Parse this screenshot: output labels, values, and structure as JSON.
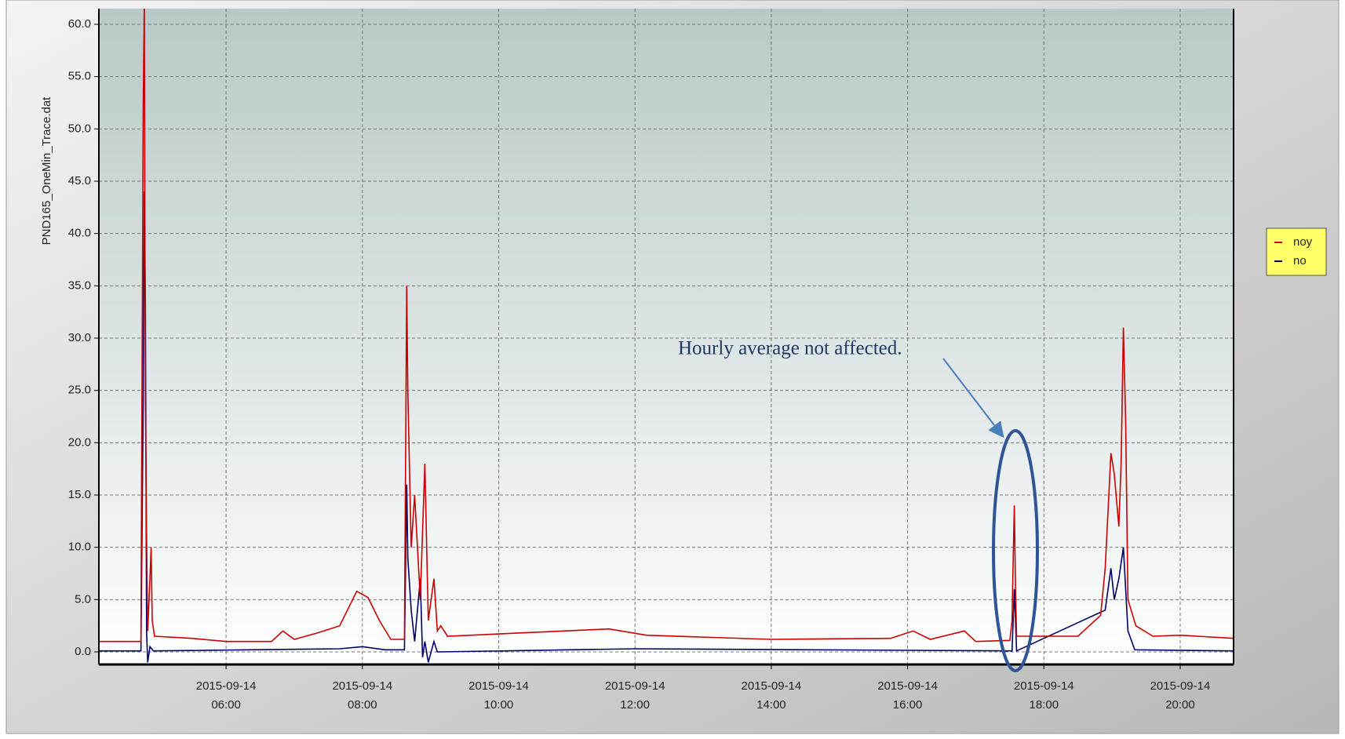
{
  "chart_data": {
    "type": "line",
    "ylabel": "PND165_OneMin_Trace.dat",
    "annotation": "Hourly average not affected.",
    "legend": "right",
    "grid": true,
    "xlim": [
      "2015-09-14 04:08",
      "2015-09-14 20:47"
    ],
    "xticks": [
      "2015-09-14 06:00",
      "2015-09-14 08:00",
      "2015-09-14 10:00",
      "2015-09-14 12:00",
      "2015-09-14 14:00",
      "2015-09-14 16:00",
      "2015-09-14 18:00",
      "2015-09-14 20:00"
    ],
    "ylim": [
      -1.2,
      61.5
    ],
    "yticks": [
      {
        "value": 0,
        "label": "0.0"
      },
      {
        "value": 5,
        "label": "5.0"
      },
      {
        "value": 10,
        "label": "10.0"
      },
      {
        "value": 15,
        "label": "15.0"
      },
      {
        "value": 20,
        "label": "20.0"
      },
      {
        "value": 25,
        "label": "25.0"
      },
      {
        "value": 30,
        "label": "30.0"
      },
      {
        "value": 35,
        "label": "35.0"
      },
      {
        "value": 40,
        "label": "40.0"
      },
      {
        "value": 45,
        "label": "45.0"
      },
      {
        "value": 50,
        "label": "50.0"
      },
      {
        "value": 55,
        "label": "55.0"
      },
      {
        "value": 60,
        "label": "60.0"
      }
    ],
    "series": [
      {
        "name": "noy",
        "color": "#cc0000",
        "x": [
          "2015-09-14 04:08",
          "2015-09-14 04:45",
          "2015-09-14 04:47",
          "2015-09-14 04:48",
          "2015-09-14 04:49",
          "2015-09-14 04:50",
          "2015-09-14 04:51",
          "2015-09-14 04:53",
          "2015-09-14 04:54",
          "2015-09-14 04:55",
          "2015-09-14 04:57",
          "2015-09-14 05:30",
          "2015-09-14 06:00",
          "2015-09-14 06:40",
          "2015-09-14 06:50",
          "2015-09-14 07:00",
          "2015-09-14 07:20",
          "2015-09-14 07:40",
          "2015-09-14 07:55",
          "2015-09-14 08:05",
          "2015-09-14 08:15",
          "2015-09-14 08:25",
          "2015-09-14 08:37",
          "2015-09-14 08:39",
          "2015-09-14 08:40",
          "2015-09-14 08:43",
          "2015-09-14 08:46",
          "2015-09-14 08:51",
          "2015-09-14 08:55",
          "2015-09-14 08:58",
          "2015-09-14 09:03",
          "2015-09-14 09:06",
          "2015-09-14 09:09",
          "2015-09-14 09:15",
          "2015-09-14 11:37",
          "2015-09-14 12:10",
          "2015-09-14 14:00",
          "2015-09-14 15:45",
          "2015-09-14 16:05",
          "2015-09-14 16:20",
          "2015-09-14 16:50",
          "2015-09-14 17:00",
          "2015-09-14 17:30",
          "2015-09-14 17:32",
          "2015-09-14 17:33",
          "2015-09-14 17:34",
          "2015-09-14 17:35",
          "2015-09-14 17:36",
          "2015-09-14 18:30",
          "2015-09-14 18:50",
          "2015-09-14 18:54",
          "2015-09-14 18:59",
          "2015-09-14 19:02",
          "2015-09-14 19:06",
          "2015-09-14 19:08",
          "2015-09-14 19:10",
          "2015-09-14 19:12",
          "2015-09-14 19:14",
          "2015-09-14 19:21",
          "2015-09-14 19:36",
          "2015-09-14 20:00",
          "2015-09-14 20:47"
        ],
        "values": [
          1.0,
          1.0,
          52,
          62,
          24,
          11,
          2,
          7,
          10,
          3,
          1.5,
          1.3,
          1.0,
          1.0,
          2,
          1.2,
          1.8,
          2.5,
          5.8,
          5.2,
          3,
          1.2,
          1.2,
          35,
          25,
          10,
          15,
          5,
          18,
          3,
          7,
          2,
          2.5,
          1.5,
          2.2,
          1.6,
          1.2,
          1.3,
          2,
          1.2,
          2,
          1.0,
          1.1,
          3,
          9,
          14,
          6,
          1.5,
          1.5,
          3.5,
          8,
          19,
          17,
          12,
          18,
          31,
          22,
          5,
          2.5,
          1.5,
          1.6,
          1.3
        ]
      },
      {
        "name": "no",
        "color": "#000066",
        "x": [
          "2015-09-14 04:08",
          "2015-09-14 04:45",
          "2015-09-14 04:47",
          "2015-09-14 04:48",
          "2015-09-14 04:49",
          "2015-09-14 04:50",
          "2015-09-14 04:51",
          "2015-09-14 04:53",
          "2015-09-14 04:56",
          "2015-09-14 07:40",
          "2015-09-14 08:00",
          "2015-09-14 08:20",
          "2015-09-14 08:37",
          "2015-09-14 08:39",
          "2015-09-14 08:40",
          "2015-09-14 08:43",
          "2015-09-14 08:46",
          "2015-09-14 08:51",
          "2015-09-14 08:53",
          "2015-09-14 08:55",
          "2015-09-14 08:58",
          "2015-09-14 09:03",
          "2015-09-14 09:06",
          "2015-09-14 12:00",
          "2015-09-14 17:32",
          "2015-09-14 17:34",
          "2015-09-14 17:36",
          "2015-09-14 18:54",
          "2015-09-14 18:59",
          "2015-09-14 19:02",
          "2015-09-14 19:06",
          "2015-09-14 19:10",
          "2015-09-14 19:12",
          "2015-09-14 19:14",
          "2015-09-14 19:20",
          "2015-09-14 20:47"
        ],
        "values": [
          0.1,
          0.1,
          24,
          44,
          33,
          2,
          -1,
          0.5,
          0.1,
          0.3,
          0.5,
          0.2,
          0.2,
          16,
          9,
          4,
          1,
          7,
          -0.5,
          1,
          -1,
          1,
          0,
          0.3,
          0.1,
          6,
          0.1,
          4,
          8,
          5,
          7,
          10,
          6,
          2,
          0.2,
          0.1
        ]
      }
    ]
  }
}
